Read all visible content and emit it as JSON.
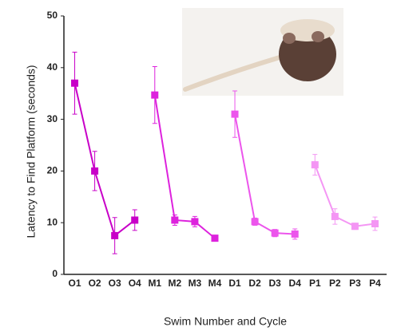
{
  "chart_data": {
    "type": "line",
    "x_label": "Swim Number and Cycle",
    "y_label": "Latency to Find Platform (seconds)",
    "categories": [
      "O1",
      "O2",
      "O3",
      "O4",
      "M1",
      "M2",
      "M3",
      "M4",
      "D1",
      "D2",
      "D3",
      "D4",
      "P1",
      "P2",
      "P3",
      "P4"
    ],
    "ylim": [
      0,
      50
    ],
    "yticks": [
      0,
      10,
      20,
      30,
      40,
      50
    ],
    "series": [
      {
        "color": "#c800c8",
        "values": [
          37,
          20,
          7.5,
          10.5,
          null,
          null,
          null,
          null,
          null,
          null,
          null,
          null,
          null,
          null,
          null,
          null
        ],
        "errors": [
          6,
          3.8,
          3.5,
          2,
          null,
          null,
          null,
          null,
          null,
          null,
          null,
          null,
          null,
          null,
          null,
          null
        ]
      },
      {
        "color": "#dd22dd",
        "values": [
          null,
          null,
          null,
          null,
          34.7,
          10.5,
          10.2,
          7,
          null,
          null,
          null,
          null,
          null,
          null,
          null,
          null
        ],
        "errors": [
          null,
          null,
          null,
          null,
          5.5,
          1,
          1,
          0.3,
          null,
          null,
          null,
          null,
          null,
          null,
          null,
          null
        ]
      },
      {
        "color": "#ec55ec",
        "values": [
          null,
          null,
          null,
          null,
          null,
          null,
          null,
          null,
          31,
          10.2,
          8,
          7.8,
          null,
          null,
          null,
          null
        ],
        "errors": [
          null,
          null,
          null,
          null,
          null,
          null,
          null,
          null,
          4.5,
          0.7,
          0.7,
          1,
          null,
          null,
          null,
          null
        ]
      },
      {
        "color": "#f496f4",
        "values": [
          null,
          null,
          null,
          null,
          null,
          null,
          null,
          null,
          null,
          null,
          null,
          null,
          21.2,
          11.2,
          9.3,
          9.8
        ],
        "errors": [
          null,
          null,
          null,
          null,
          null,
          null,
          null,
          null,
          null,
          null,
          null,
          null,
          2,
          1.5,
          0.6,
          1.3
        ]
      }
    ]
  }
}
